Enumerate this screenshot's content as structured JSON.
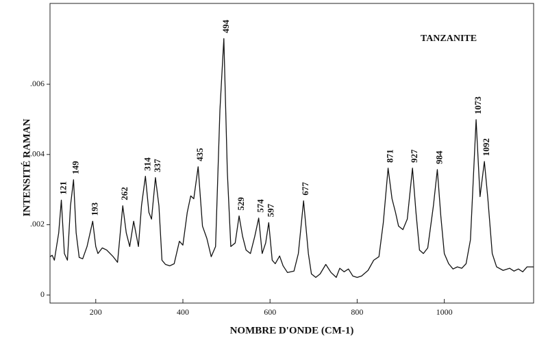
{
  "chart_data": {
    "type": "line",
    "title": "TANZANITE",
    "xlabel": "NOMBRE D'ONDE (CM-1)",
    "ylabel": "INTENSITÉ RAMAN",
    "color": "#111111",
    "xlim": [
      95,
      1205
    ],
    "ylim": [
      -0.00023,
      0.0083
    ],
    "xticks": [
      200,
      400,
      600,
      800,
      1000
    ],
    "yticks": [
      0,
      {
        "value": 0.002,
        "label": ".002"
      },
      {
        "value": 0.004,
        "label": ".004"
      },
      {
        "value": 0.006,
        "label": ".006"
      }
    ],
    "x": [
      95,
      100,
      105,
      115,
      121,
      128,
      135,
      142,
      149,
      155,
      162,
      170,
      180,
      193,
      200,
      205,
      215,
      225,
      240,
      250,
      262,
      270,
      278,
      287,
      298,
      305,
      314,
      322,
      328,
      337,
      345,
      352,
      360,
      370,
      380,
      392,
      400,
      410,
      418,
      425,
      435,
      445,
      455,
      465,
      475,
      485,
      494,
      502,
      510,
      520,
      529,
      537,
      545,
      555,
      565,
      574,
      582,
      590,
      597,
      605,
      612,
      622,
      630,
      640,
      655,
      665,
      677,
      688,
      695,
      705,
      715,
      728,
      740,
      752,
      760,
      770,
      780,
      790,
      800,
      810,
      825,
      838,
      850,
      860,
      871,
      880,
      888,
      895,
      905,
      915,
      927,
      935,
      943,
      952,
      962,
      975,
      984,
      992,
      1000,
      1010,
      1020,
      1030,
      1040,
      1050,
      1060,
      1073,
      1082,
      1092,
      1100,
      1110,
      1120,
      1135,
      1150,
      1160,
      1170,
      1180,
      1190,
      1205
    ],
    "values": [
      0.00109,
      0.00113,
      0.00099,
      0.00177,
      0.0027,
      0.00118,
      0.00099,
      0.00254,
      0.00328,
      0.00177,
      0.00107,
      0.00103,
      0.00138,
      0.0021,
      0.00138,
      0.00118,
      0.00134,
      0.00128,
      0.00109,
      0.00093,
      0.00254,
      0.00177,
      0.00138,
      0.0021,
      0.00138,
      0.00254,
      0.00338,
      0.00235,
      0.00216,
      0.00334,
      0.00254,
      0.00099,
      0.00087,
      0.00083,
      0.00089,
      0.00153,
      0.00142,
      0.00235,
      0.00282,
      0.00274,
      0.00365,
      0.00196,
      0.00161,
      0.00109,
      0.00138,
      0.00526,
      0.0073,
      0.00351,
      0.00138,
      0.00148,
      0.00225,
      0.00167,
      0.00128,
      0.00118,
      0.00167,
      0.00219,
      0.00118,
      0.00148,
      0.00206,
      0.00099,
      0.00089,
      0.00111,
      0.00083,
      0.00064,
      0.00068,
      0.00118,
      0.00268,
      0.00118,
      0.0006,
      0.0005,
      0.0006,
      0.00087,
      0.00064,
      0.0005,
      0.00076,
      0.00066,
      0.00074,
      0.00054,
      0.0005,
      0.00054,
      0.0007,
      0.00099,
      0.00109,
      0.00206,
      0.00361,
      0.00274,
      0.00235,
      0.00196,
      0.00186,
      0.00216,
      0.00361,
      0.00235,
      0.00128,
      0.00118,
      0.00134,
      0.00254,
      0.00357,
      0.00225,
      0.00118,
      0.00089,
      0.00074,
      0.0008,
      0.00076,
      0.00089,
      0.00157,
      0.00499,
      0.0028,
      0.0038,
      0.00274,
      0.00118,
      0.0008,
      0.0007,
      0.00076,
      0.00068,
      0.00074,
      0.00066,
      0.0008,
      0.0008
    ],
    "annotations": [
      {
        "text": "121",
        "x": 121,
        "y": 0.0027
      },
      {
        "text": "149",
        "x": 149,
        "y": 0.00328
      },
      {
        "text": "193",
        "x": 193,
        "y": 0.0021
      },
      {
        "text": "262",
        "x": 262,
        "y": 0.00254
      },
      {
        "text": "314",
        "x": 314,
        "y": 0.00338
      },
      {
        "text": "337",
        "x": 337,
        "y": 0.00334
      },
      {
        "text": "435",
        "x": 435,
        "y": 0.00365
      },
      {
        "text": "494",
        "x": 494,
        "y": 0.0073
      },
      {
        "text": "529",
        "x": 529,
        "y": 0.00225
      },
      {
        "text": "574",
        "x": 574,
        "y": 0.00219
      },
      {
        "text": "597",
        "x": 597,
        "y": 0.00206
      },
      {
        "text": "677",
        "x": 677,
        "y": 0.00268
      },
      {
        "text": "871",
        "x": 871,
        "y": 0.00361
      },
      {
        "text": "927",
        "x": 927,
        "y": 0.00361
      },
      {
        "text": "984",
        "x": 984,
        "y": 0.00357
      },
      {
        "text": "1073",
        "x": 1073,
        "y": 0.00499
      },
      {
        "text": "1092",
        "x": 1092,
        "y": 0.0038
      }
    ]
  }
}
